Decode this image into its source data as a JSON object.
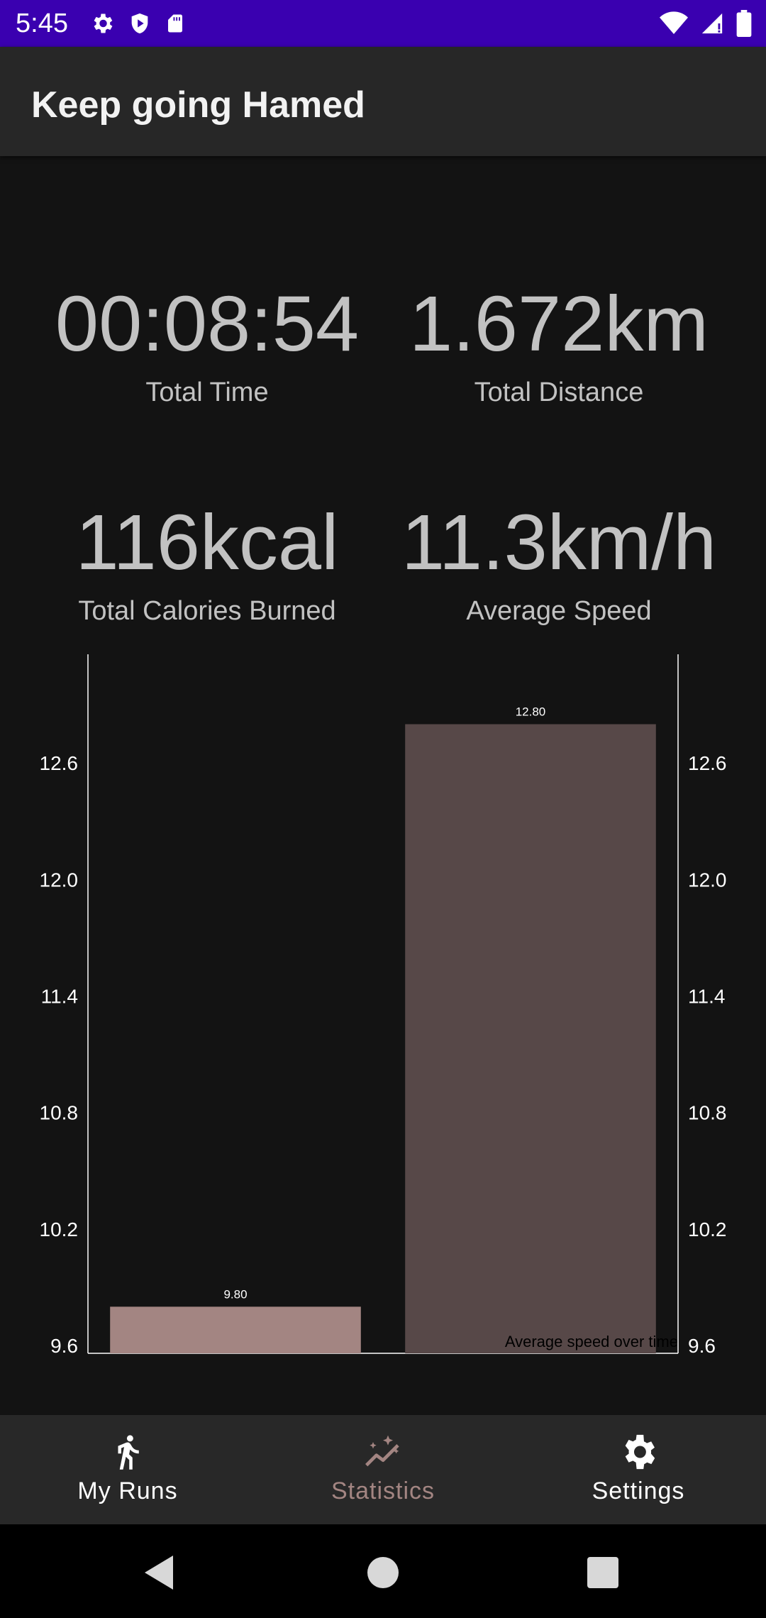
{
  "status_bar": {
    "time": "5:45"
  },
  "app_bar": {
    "title": "Keep going Hamed"
  },
  "stats": [
    {
      "value": "00:08:54",
      "label": "Total Time"
    },
    {
      "value": "1.672km",
      "label": "Total Distance"
    },
    {
      "value": "116kcal",
      "label": "Total Calories Burned"
    },
    {
      "value": "11.3km/h",
      "label": "Average Speed"
    }
  ],
  "chart_data": {
    "type": "bar",
    "categories": [
      "",
      ""
    ],
    "values": [
      9.8,
      12.8
    ],
    "value_labels": [
      "9.80",
      "12.80"
    ],
    "bar_colors": [
      "#a38582",
      "#574848"
    ],
    "description_text": "Average speed over time",
    "y_ticks": [
      "9.6",
      "10.2",
      "10.8",
      "11.4",
      "12.0",
      "12.6"
    ],
    "ylim": [
      9.56,
      13.16
    ],
    "axes": "left-and-right",
    "grid": false
  },
  "bottom_nav": [
    {
      "label": "My Runs",
      "icon": "run-icon",
      "color": "#ffffff"
    },
    {
      "label": "Statistics",
      "icon": "insights-icon",
      "color": "#a38582"
    },
    {
      "label": "Settings",
      "icon": "gear-icon",
      "color": "#ffffff"
    }
  ],
  "colors": {
    "status_bar": "#3a00b0",
    "app_bar": "#272727",
    "accent": "#a38582"
  }
}
